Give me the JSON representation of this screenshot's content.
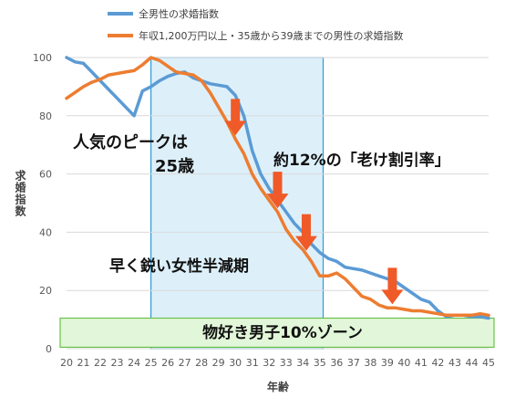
{
  "chart_data": {
    "type": "line",
    "xlabel": "年齢",
    "ylabel": "求婚指数",
    "xlim": [
      20,
      45
    ],
    "ylim": [
      0,
      100
    ],
    "xticks": [
      "20",
      "21",
      "22",
      "23",
      "24",
      "25",
      "26",
      "27",
      "28",
      "29",
      "30",
      "31",
      "32",
      "33",
      "34",
      "35",
      "36",
      "37",
      "38",
      "39",
      "40",
      "41",
      "42",
      "43",
      "44",
      "45"
    ],
    "yticks": [
      "0",
      "20",
      "40",
      "60",
      "80",
      "100"
    ],
    "grid": "horizontal",
    "legend_position": "top-left",
    "series": [
      {
        "name": "全男性の求婚指数",
        "color": "#5B9BD5",
        "x": [
          20,
          20.5,
          21,
          21.5,
          22,
          22.5,
          23,
          23.5,
          24,
          24.5,
          25,
          25.5,
          26,
          26.5,
          27,
          27.5,
          28,
          28.5,
          29,
          29.5,
          30,
          30.5,
          31,
          31.5,
          32,
          32.5,
          33,
          33.5,
          34,
          34.5,
          35,
          35.5,
          36,
          36.5,
          37,
          37.5,
          38,
          38.5,
          39,
          39.5,
          40,
          40.5,
          41,
          41.5,
          42,
          42.5,
          43,
          43.5,
          44,
          44.5,
          45
        ],
        "y": [
          100,
          98.5,
          98,
          95,
          92,
          89,
          86,
          83,
          80,
          88.5,
          90,
          92,
          93.5,
          94.5,
          95,
          93,
          92,
          91,
          90.5,
          90,
          87,
          80,
          68,
          60,
          55,
          51,
          47,
          43,
          40,
          36,
          33,
          31,
          30,
          28,
          27.5,
          27,
          26,
          25,
          24,
          23,
          21,
          19,
          17,
          16,
          13,
          11,
          11.5,
          11.5,
          11,
          11,
          10.5
        ]
      },
      {
        "name": "年収1,200万円以上・35歳から39歳までの男性の求婚指数",
        "color": "#ED7D31",
        "x": [
          20,
          20.5,
          21,
          21.5,
          22,
          22.5,
          23,
          23.5,
          24,
          24.5,
          25,
          25.5,
          26,
          26.5,
          27,
          27.5,
          28,
          28.5,
          29,
          29.5,
          30,
          30.5,
          31,
          31.5,
          32,
          32.5,
          33,
          33.5,
          34,
          34.5,
          35,
          35.5,
          36,
          36.5,
          37,
          37.5,
          38,
          38.5,
          39,
          39.5,
          40,
          40.5,
          41,
          41.5,
          42,
          42.5,
          43,
          43.5,
          44,
          44.5,
          45
        ],
        "y": [
          86,
          88,
          90,
          91.5,
          92.5,
          94,
          94.5,
          95,
          95.5,
          97.5,
          100,
          99,
          97,
          95,
          94.5,
          94,
          92,
          88,
          83,
          78,
          72,
          67,
          60,
          55,
          51,
          47,
          41,
          37,
          34,
          30,
          25,
          25,
          26,
          24,
          21,
          18,
          17,
          15,
          14,
          14,
          13.5,
          13,
          13,
          12.5,
          12,
          11.5,
          11.5,
          11.5,
          11.5,
          12,
          11.5
        ]
      }
    ],
    "annotations": [
      "人気のピークは",
      "25歳",
      "約12%の「老け割引率」",
      "早く鋭い女性半減期",
      "物好き男子10%ゾーン"
    ]
  }
}
